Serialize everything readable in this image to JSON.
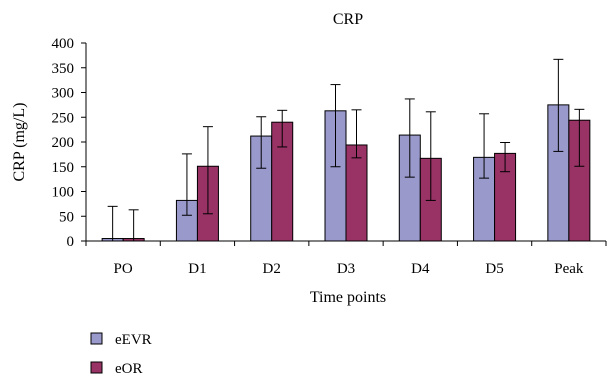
{
  "chart_data": {
    "type": "bar",
    "title": "CRP",
    "xlabel": "Time points",
    "ylabel": "CRP (mg/L)",
    "ylim": [
      0,
      400
    ],
    "yticks": [
      0,
      50,
      100,
      150,
      200,
      250,
      300,
      350,
      400
    ],
    "categories": [
      "PO",
      "D1",
      "D2",
      "D3",
      "D4",
      "D5",
      "Peak"
    ],
    "grid": false,
    "legend_position": "bottom-left",
    "series": [
      {
        "name": "eEVR",
        "color": "#9999cc",
        "values": [
          5,
          82,
          212,
          263,
          214,
          169,
          275
        ],
        "error_upper": [
          70,
          176,
          251,
          316,
          287,
          257,
          367
        ],
        "error_lower": [
          0,
          52,
          147,
          150,
          129,
          127,
          181
        ]
      },
      {
        "name": "eOR",
        "color": "#993366",
        "values": [
          5,
          151,
          240,
          194,
          167,
          177,
          244
        ],
        "error_upper": [
          63,
          231,
          264,
          265,
          261,
          199,
          266
        ],
        "error_lower": [
          0,
          55,
          190,
          168,
          82,
          140,
          151
        ]
      }
    ]
  }
}
